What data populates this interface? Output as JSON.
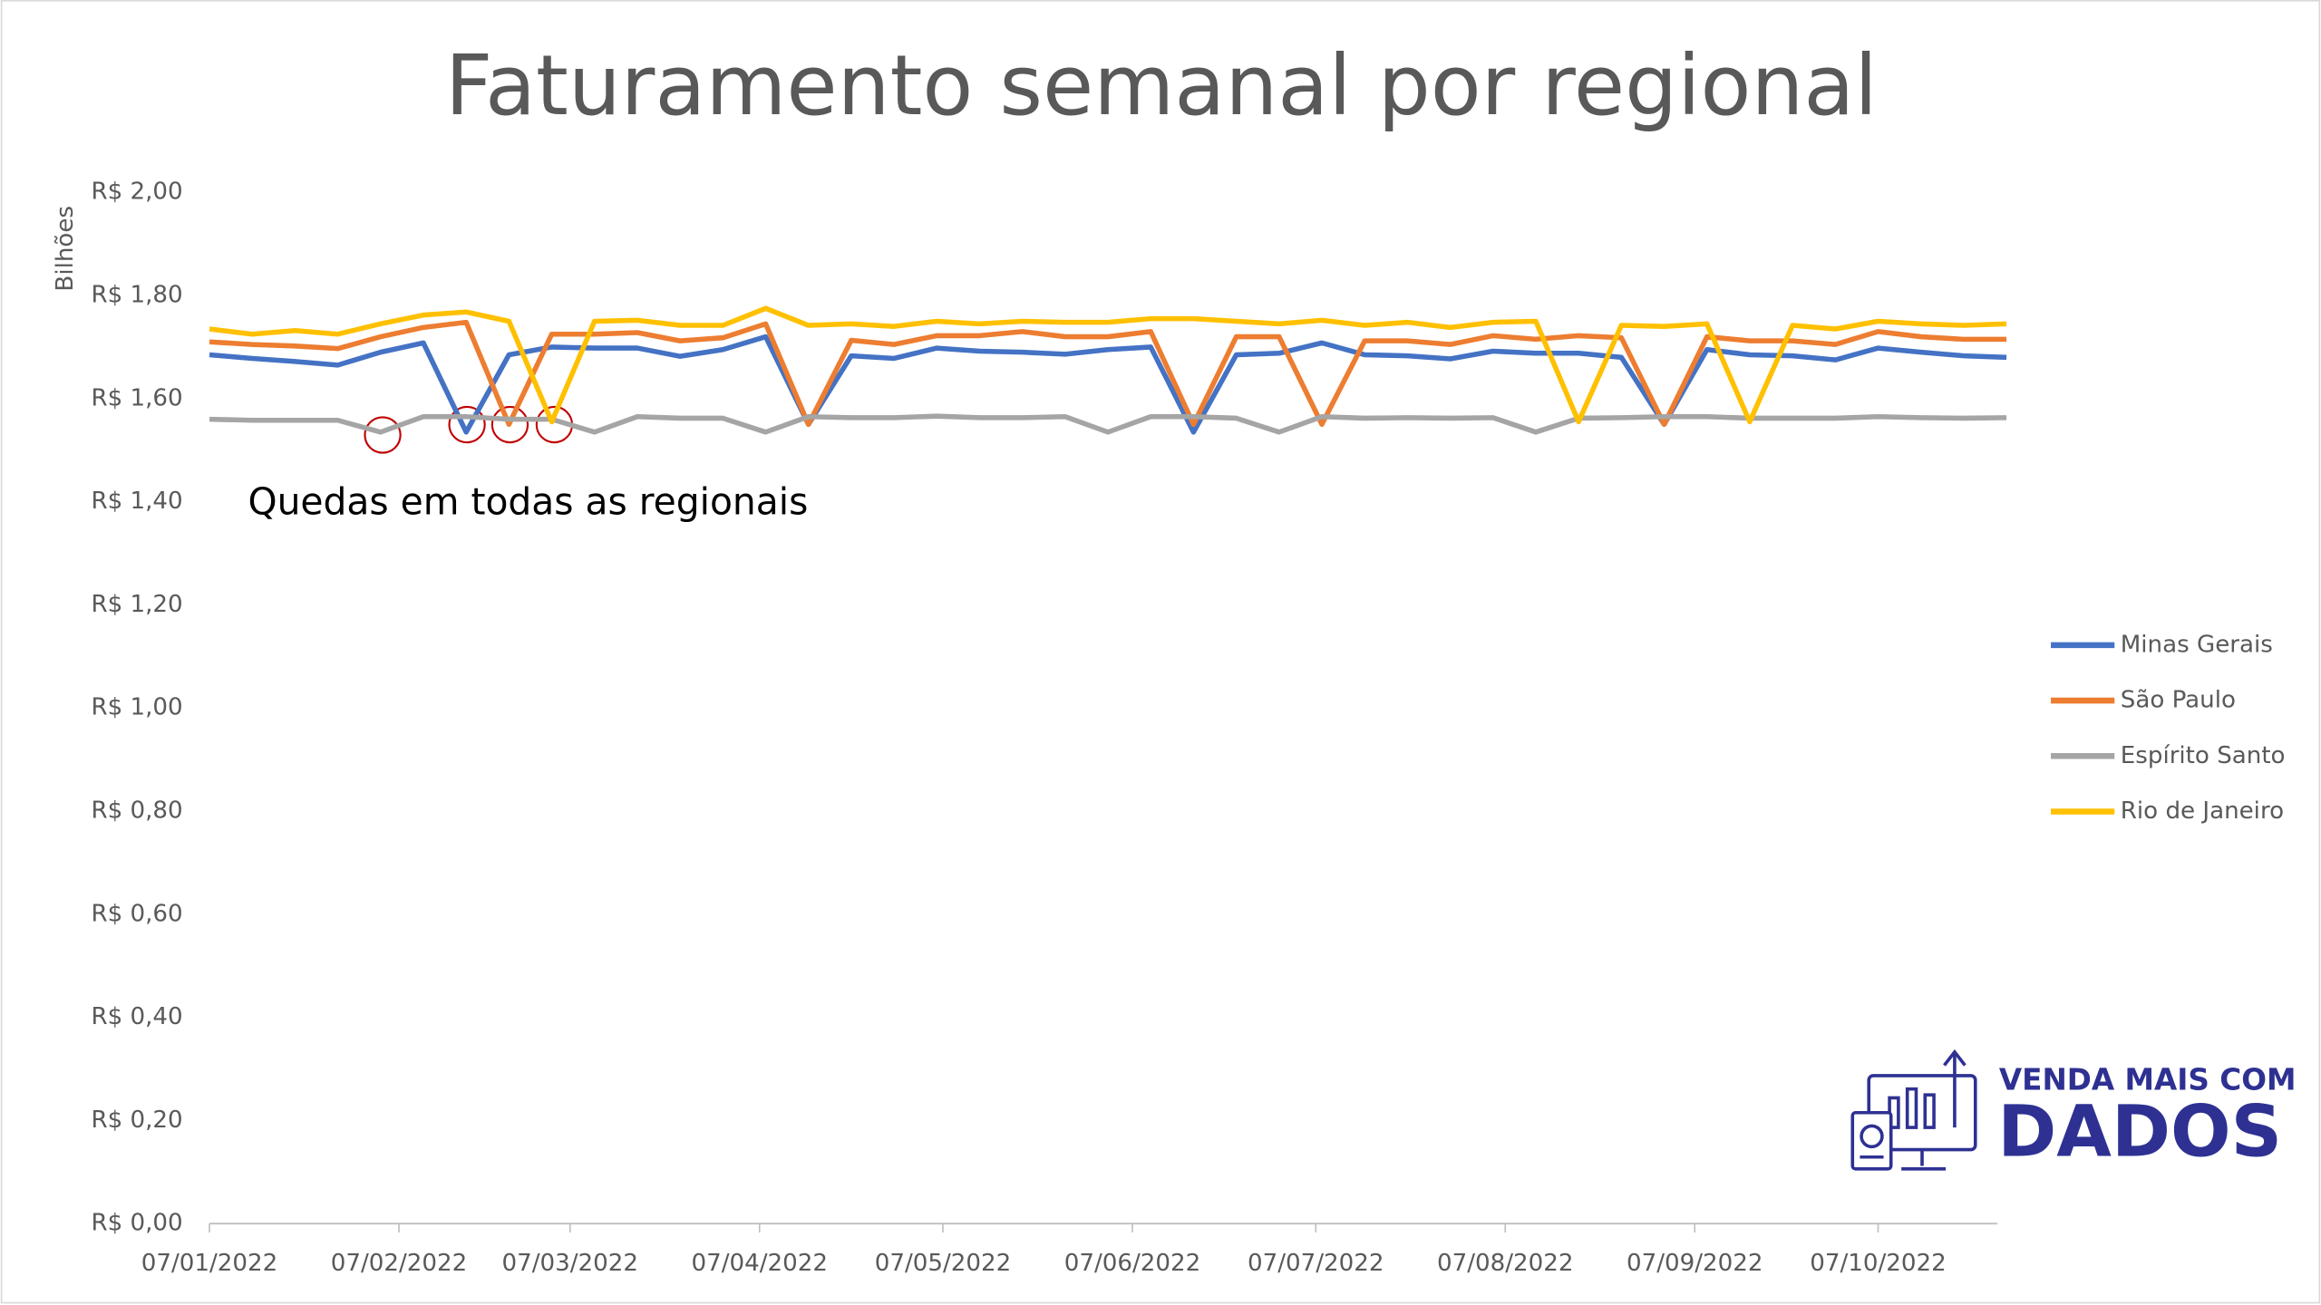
{
  "chart_data": {
    "type": "line",
    "title": "Faturamento semanal por regional",
    "y_label": "Bilhões",
    "annotation": "Quedas em todas as regionais",
    "legend": "right",
    "grid": false,
    "x": [
      "07/01/2022",
      "14/01/2022",
      "21/01/2022",
      "28/01/2022",
      "04/02/2022",
      "11/02/2022",
      "18/02/2022",
      "25/02/2022",
      "04/03/2022",
      "11/03/2022",
      "18/03/2022",
      "25/03/2022",
      "01/04/2022",
      "08/04/2022",
      "15/04/2022",
      "22/04/2022",
      "29/04/2022",
      "06/05/2022",
      "13/05/2022",
      "20/05/2022",
      "27/05/2022",
      "03/06/2022",
      "10/06/2022",
      "17/06/2022",
      "24/06/2022",
      "01/07/2022",
      "08/07/2022",
      "15/07/2022",
      "22/07/2022",
      "29/07/2022",
      "05/08/2022",
      "12/08/2022",
      "19/08/2022",
      "26/08/2022",
      "02/09/2022",
      "09/09/2022",
      "16/09/2022",
      "23/09/2022",
      "30/09/2022",
      "07/10/2022",
      "14/10/2022",
      "21/10/2022",
      "28/10/2022"
    ],
    "xlim": [
      "07/01/2022",
      "28/10/2022"
    ],
    "xticks": [
      "07/01/2022",
      "07/02/2022",
      "07/03/2022",
      "07/04/2022",
      "07/05/2022",
      "07/06/2022",
      "07/07/2022",
      "07/08/2022",
      "07/09/2022",
      "07/10/2022"
    ],
    "ylim": [
      0,
      2
    ],
    "yticks": [
      {
        "value": 0,
        "label": "R$ 0,00"
      },
      {
        "value": 0.2,
        "label": "R$ 0,20"
      },
      {
        "value": 0.4,
        "label": "R$ 0,40"
      },
      {
        "value": 0.6,
        "label": "R$ 0,60"
      },
      {
        "value": 0.8,
        "label": "R$ 0,80"
      },
      {
        "value": 1,
        "label": "R$ 1,00"
      },
      {
        "value": 1.2,
        "label": "R$ 1,20"
      },
      {
        "value": 1.4,
        "label": "R$ 1,40"
      },
      {
        "value": 1.6,
        "label": "R$ 1,60"
      },
      {
        "value": 1.8,
        "label": "R$ 1,80"
      },
      {
        "value": 2,
        "label": "R$ 2,00"
      }
    ],
    "series": [
      {
        "name": "Minas Gerais",
        "color": "#4472c4",
        "values": [
          1.685,
          1.678,
          1.672,
          1.665,
          1.69,
          1.708,
          1.535,
          1.685,
          1.7,
          1.698,
          1.698,
          1.682,
          1.695,
          1.72,
          1.55,
          1.683,
          1.678,
          1.698,
          1.692,
          1.69,
          1.686,
          1.695,
          1.7,
          1.535,
          1.685,
          1.688,
          1.708,
          1.685,
          1.683,
          1.677,
          1.692,
          1.688,
          1.688,
          1.68,
          1.55,
          1.695,
          1.685,
          1.683,
          1.675,
          1.698,
          1.69,
          1.683,
          1.68
        ]
      },
      {
        "name": "São Paulo",
        "color": "#ed7d31",
        "values": [
          1.71,
          1.705,
          1.702,
          1.697,
          1.72,
          1.738,
          1.748,
          1.55,
          1.725,
          1.725,
          1.728,
          1.712,
          1.718,
          1.745,
          1.55,
          1.713,
          1.705,
          1.722,
          1.722,
          1.73,
          1.72,
          1.72,
          1.73,
          1.55,
          1.72,
          1.72,
          1.55,
          1.712,
          1.712,
          1.705,
          1.722,
          1.715,
          1.722,
          1.718,
          1.55,
          1.72,
          1.712,
          1.712,
          1.705,
          1.73,
          1.72,
          1.715,
          1.715
        ]
      },
      {
        "name": "Espírito Santo",
        "color": "#a5a5a5",
        "values": [
          1.56,
          1.558,
          1.558,
          1.558,
          1.535,
          1.565,
          1.565,
          1.56,
          1.56,
          1.535,
          1.565,
          1.562,
          1.562,
          1.535,
          1.565,
          1.563,
          1.563,
          1.566,
          1.563,
          1.563,
          1.565,
          1.535,
          1.565,
          1.565,
          1.562,
          1.535,
          1.565,
          1.562,
          1.563,
          1.562,
          1.563,
          1.535,
          1.562,
          1.563,
          1.565,
          1.565,
          1.562,
          1.562,
          1.562,
          1.565,
          1.563,
          1.562,
          1.563
        ]
      },
      {
        "name": "Rio de Janeiro",
        "color": "#ffc000",
        "values": [
          1.735,
          1.725,
          1.732,
          1.725,
          1.745,
          1.762,
          1.768,
          1.75,
          1.555,
          1.75,
          1.752,
          1.742,
          1.742,
          1.775,
          1.742,
          1.745,
          1.74,
          1.75,
          1.745,
          1.75,
          1.748,
          1.748,
          1.755,
          1.755,
          1.75,
          1.745,
          1.752,
          1.742,
          1.748,
          1.738,
          1.748,
          1.75,
          1.555,
          1.742,
          1.74,
          1.745,
          1.555,
          1.742,
          1.735,
          1.75,
          1.745,
          1.742,
          1.745
        ]
      }
    ]
  },
  "logo": {
    "line1": "VENDA MAIS COM",
    "line2": "DADOS"
  }
}
